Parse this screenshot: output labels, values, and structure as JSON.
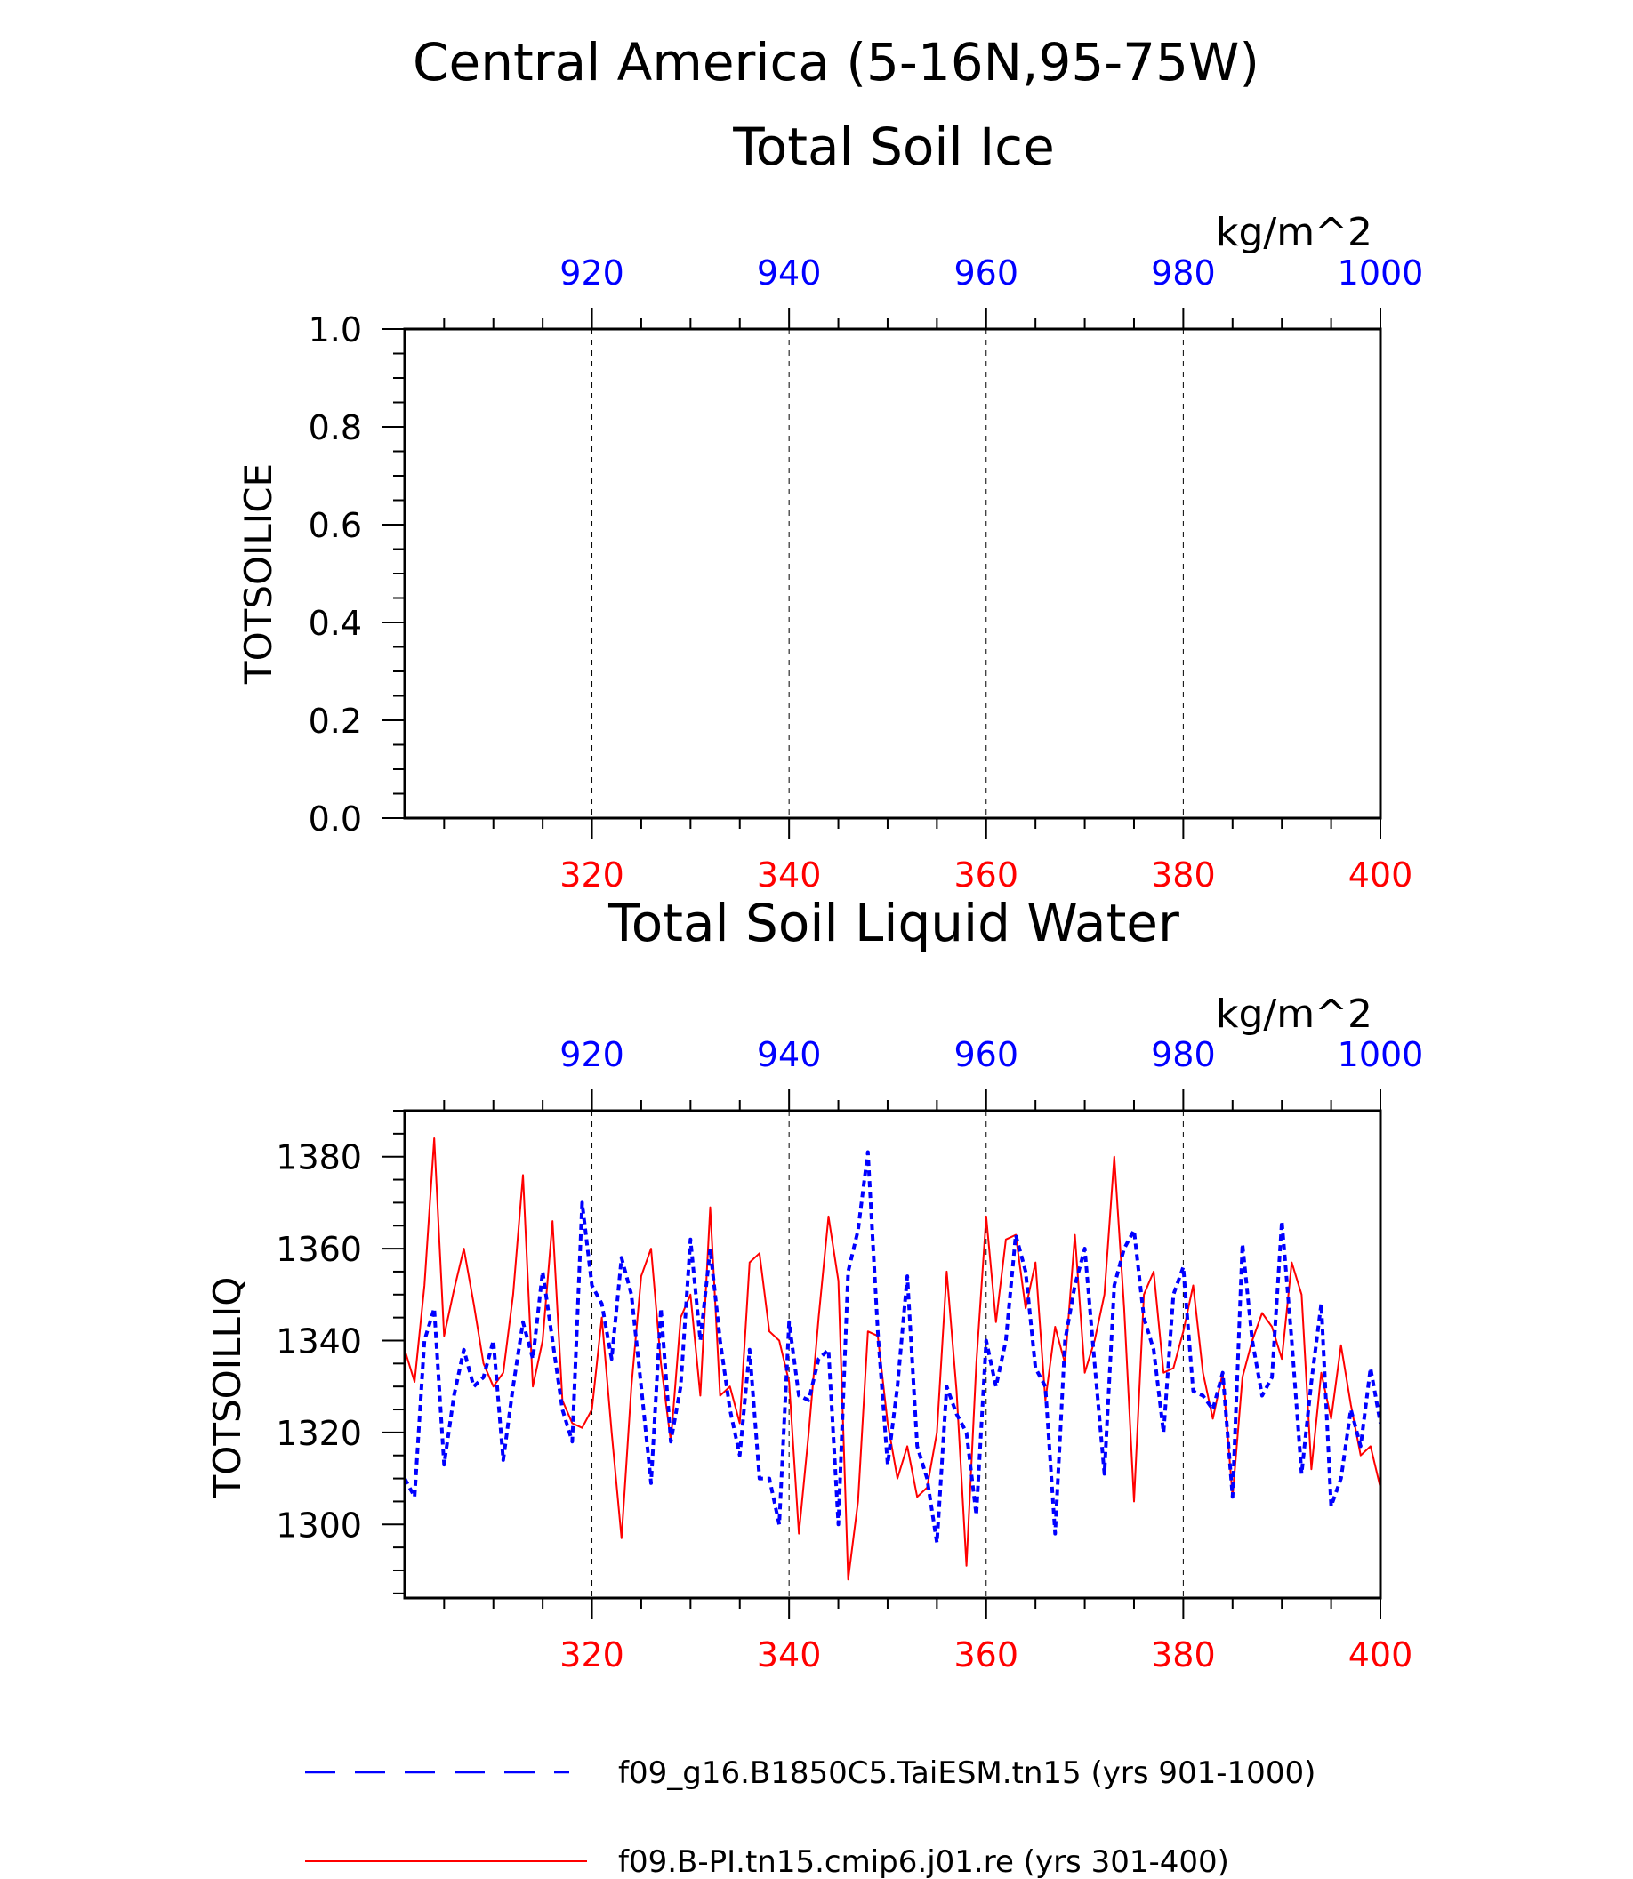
{
  "figure": {
    "title_line1": "Central America (5-16N,95-75W)",
    "legend": [
      {
        "label": "f09_g16.B1850C5.TaiESM.tn15 (yrs 901-1000)",
        "color": "#0000ff",
        "style": "dashed"
      },
      {
        "label": "f09.B-PI.tn15.cmip6.j01.re (yrs 301-400)",
        "color": "#ff0000",
        "style": "solid"
      }
    ]
  },
  "chart_data": [
    {
      "type": "line",
      "title": "Total Soil Ice",
      "ylabel": "TOTSOILICE",
      "units": "kg/m^2",
      "ylim": [
        0.0,
        1.0
      ],
      "yticks": [
        "0.0",
        "0.2",
        "0.4",
        "0.6",
        "0.8",
        "1.0"
      ],
      "xlim_bottom": [
        301,
        400
      ],
      "xticks_bottom": [
        "320",
        "340",
        "360",
        "380",
        "400"
      ],
      "xlim_top": [
        901,
        1000
      ],
      "xticks_top": [
        "920",
        "940",
        "960",
        "980",
        "1000"
      ],
      "grid": "vertical-dashed",
      "series": [
        {
          "name": "f09_g16.B1850C5.TaiESM.tn15 (yrs 901-1000)",
          "color": "#0000ff",
          "style": "dashed",
          "x_start": 901,
          "values": []
        },
        {
          "name": "f09.B-PI.tn15.cmip6.j01.re (yrs 301-400)",
          "color": "#ff0000",
          "style": "solid",
          "x_start": 301,
          "values": []
        }
      ]
    },
    {
      "type": "line",
      "title": "Total Soil Liquid Water",
      "ylabel": "TOTSOILLIQ",
      "units": "kg/m^2",
      "ylim": [
        1284,
        1390
      ],
      "yticks": [
        "1300",
        "1320",
        "1340",
        "1360",
        "1380"
      ],
      "xlim_bottom": [
        301,
        400
      ],
      "xticks_bottom": [
        "320",
        "340",
        "360",
        "380",
        "400"
      ],
      "xlim_top": [
        901,
        1000
      ],
      "xticks_top": [
        "920",
        "940",
        "960",
        "980",
        "1000"
      ],
      "grid": "vertical-dashed",
      "series": [
        {
          "name": "f09_g16.B1850C5.TaiESM.tn15 (yrs 901-1000)",
          "color": "#0000ff",
          "style": "dashed",
          "x_start": 901,
          "values": [
            1310,
            1306,
            1340,
            1347,
            1313,
            1328,
            1338,
            1330,
            1332,
            1340,
            1314,
            1330,
            1344,
            1336,
            1355,
            1340,
            1325,
            1318,
            1370,
            1352,
            1348,
            1336,
            1358,
            1350,
            1330,
            1309,
            1347,
            1318,
            1330,
            1362,
            1340,
            1360,
            1340,
            1325,
            1315,
            1338,
            1310,
            1310,
            1300,
            1344,
            1328,
            1327,
            1336,
            1338,
            1300,
            1355,
            1364,
            1381,
            1342,
            1313,
            1330,
            1354,
            1317,
            1310,
            1296,
            1330,
            1324,
            1320,
            1302,
            1340,
            1330,
            1340,
            1363,
            1355,
            1334,
            1330,
            1298,
            1340,
            1352,
            1360,
            1335,
            1311,
            1352,
            1360,
            1364,
            1345,
            1338,
            1320,
            1350,
            1356,
            1329,
            1328,
            1325,
            1333,
            1306,
            1361,
            1340,
            1328,
            1332,
            1366,
            1340,
            1311,
            1331,
            1348,
            1304,
            1310,
            1325,
            1317,
            1334,
            1322
          ]
        },
        {
          "name": "f09.B-PI.tn15.cmip6.j01.re (yrs 301-400)",
          "color": "#ff0000",
          "style": "solid",
          "x_start": 301,
          "values": [
            1338,
            1331,
            1352,
            1384,
            1341,
            1351,
            1360,
            1348,
            1335,
            1330,
            1333,
            1350,
            1376,
            1330,
            1340,
            1366,
            1327,
            1322,
            1321,
            1325,
            1345,
            1320,
            1297,
            1330,
            1354,
            1360,
            1335,
            1318,
            1345,
            1350,
            1328,
            1369,
            1328,
            1330,
            1322,
            1357,
            1359,
            1342,
            1340,
            1331,
            1298,
            1320,
            1345,
            1367,
            1353,
            1288,
            1305,
            1342,
            1341,
            1322,
            1310,
            1317,
            1306,
            1308,
            1320,
            1355,
            1329,
            1291,
            1335,
            1367,
            1344,
            1362,
            1363,
            1347,
            1357,
            1327,
            1343,
            1335,
            1363,
            1333,
            1340,
            1350,
            1380,
            1347,
            1305,
            1350,
            1355,
            1333,
            1334,
            1342,
            1352,
            1333,
            1323,
            1333,
            1306,
            1332,
            1340,
            1346,
            1343,
            1336,
            1357,
            1350,
            1312,
            1333,
            1323,
            1339,
            1326,
            1315,
            1317,
            1308
          ]
        }
      ]
    }
  ]
}
